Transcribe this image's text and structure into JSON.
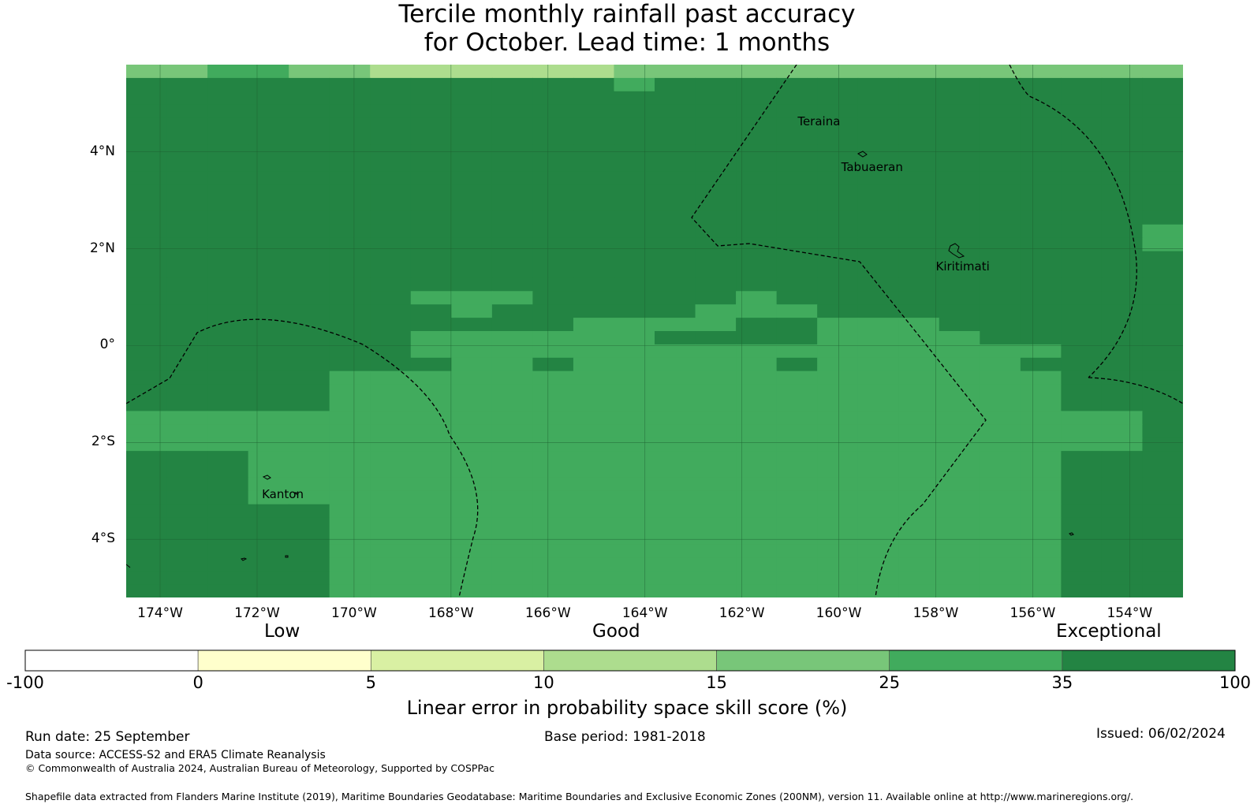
{
  "title": {
    "line1": "Tercile monthly rainfall past accuracy",
    "line2": "for October. Lead time: 1 months"
  },
  "map": {
    "lon_range": [
      -174.7,
      -152.9
    ],
    "lat_range": [
      -5.2,
      5.8
    ],
    "lat_labels": [
      {
        "value": 4,
        "label": "4°N"
      },
      {
        "value": 2,
        "label": "2°N"
      },
      {
        "value": 0,
        "label": "0°"
      },
      {
        "value": -2,
        "label": "2°S"
      },
      {
        "value": -4,
        "label": "4°S"
      }
    ],
    "lon_labels": [
      {
        "value": -174,
        "label": "174°W"
      },
      {
        "value": -172,
        "label": "172°W"
      },
      {
        "value": -170,
        "label": "170°W"
      },
      {
        "value": -168,
        "label": "168°W"
      },
      {
        "value": -166,
        "label": "166°W"
      },
      {
        "value": -164,
        "label": "164°W"
      },
      {
        "value": -162,
        "label": "162°W"
      },
      {
        "value": -160,
        "label": "160°W"
      },
      {
        "value": -158,
        "label": "158°W"
      },
      {
        "value": -156,
        "label": "156°W"
      },
      {
        "value": -154,
        "label": "154°W"
      }
    ],
    "places": [
      {
        "name": "Teraina",
        "lon": -160.85,
        "lat": 4.55
      },
      {
        "name": "Tabuaeran",
        "lon": -159.95,
        "lat": 3.6
      },
      {
        "name": "Kiritimati",
        "lon": -158.0,
        "lat": 1.55
      },
      {
        "name": "Kanton",
        "lon": -171.9,
        "lat": -3.15
      }
    ],
    "skill_grid_classes": [
      "44554433333344444444444444",
      "66666666666656666666666666",
      "66666666666666666666666666",
      "66666666666666666666666666",
      "66666666666666666666666666",
      "66666666666666666666666666",
      "66666666666666666666666666",
      "66666666666666666666666666",
      "66666666666666666666666666",
      "66666666666666666666666666",
      "66666666666666666666666666",
      "66666666666666666666666666",
      "66666666666666666666666665",
      "66666666666666666666666665",
      "66666666666666666666666666",
      "66666666666666666666666666",
      "66666666666666666666666666",
      "66666665556666656666666666",
      "66666666566666555666666666",
      "66666666666555566555666666",
      "66666665555556666555566666",
      "66666665555555555555555666",
      "66666666556555556555556666",
      "66666555555555555555555666",
      "66666555555555555555555666",
      "66666555555555555555555666",
      "55555555555555555555555556",
      "55555555555555555555555556",
      "55555555555555555555555556",
      "66655555555555555555555666",
      "66655555555555555555555666",
      "66655555555555555555555666",
      "66655555555555555555555666",
      "66666555555555555555555666",
      "66666555555555555555555666",
      "66666555555555555555555666",
      "66666555555555555555555666",
      "66666555555555555555555666",
      "66666555555555555555555666",
      "66666555555555555555555666"
    ]
  },
  "scale": {
    "low": "Low",
    "good": "Good",
    "exceptional": "Exceptional",
    "ticks": [
      "-100",
      "0",
      "5",
      "10",
      "15",
      "25",
      "35",
      "100"
    ],
    "colors": [
      "#ffffff",
      "#ffffcc",
      "#d9f0a3",
      "#addd8e",
      "#78c679",
      "#41ab5d",
      "#238443"
    ],
    "label": "Linear error in probability space skill score (%)"
  },
  "footer": {
    "run_date": "Run date: 25 September",
    "base_period": "Base period: 1981-2018",
    "issued": "Issued: 06/02/2024",
    "data_source": "Data source: ACCESS-S2 and ERA5 Climate Reanalysis",
    "copyright": "© Commonwealth of Australia 2024, Australian Bureau of Meteorology, Supported by COSPPac",
    "shapefile": "Shapefile data extracted from Flanders Marine Institute (2019), Maritime Boundaries Geodatabase: Maritime Boundaries and Exclusive Economic Zones (200NM), version 11. Available online at http://www.marineregions.org/."
  }
}
